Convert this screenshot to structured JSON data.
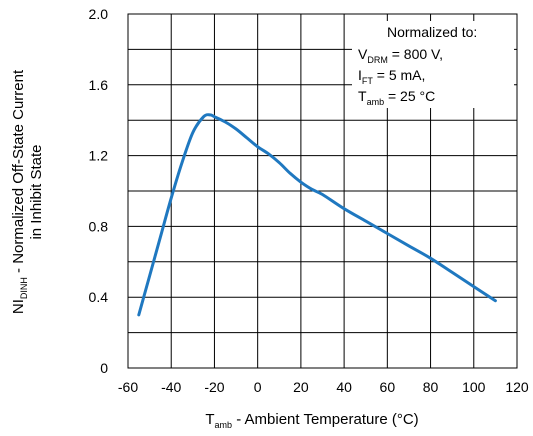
{
  "chart_data": {
    "type": "line",
    "xlabel": {
      "main": "T",
      "sub": "amb",
      "rest": " - Ambient Temperature (°C)"
    },
    "ylabel": {
      "line1_main": "NI",
      "line1_sub": "DINH",
      "line1_rest": " - Normalized Off-State Current",
      "line2": "in Inhibit State"
    },
    "xlim": [
      -60,
      120
    ],
    "ylim": [
      0,
      2.0
    ],
    "x_ticks": [
      -60,
      -40,
      -20,
      0,
      20,
      40,
      60,
      80,
      100,
      120
    ],
    "x_tick_labels": [
      "-60",
      "-40",
      "-20",
      "0",
      "20",
      "40",
      "60",
      "80",
      "100",
      "120"
    ],
    "y_ticks": [
      0,
      0.2,
      0.4,
      0.6,
      0.8,
      1.0,
      1.2,
      1.4,
      1.6,
      1.8,
      2.0
    ],
    "y_tick_labels": [
      "0",
      "",
      "0.4",
      "",
      "0.8",
      "",
      "1.2",
      "",
      "1.6",
      "",
      "2.0"
    ],
    "grid": true,
    "series": [
      {
        "color": "#1f78c0",
        "x": [
          -55,
          -50,
          -45,
          -40,
          -35,
          -30,
          -25,
          -22,
          -20,
          -15,
          -10,
          -5,
          0,
          5,
          10,
          15,
          20,
          25,
          30,
          40,
          50,
          60,
          70,
          80,
          90,
          100,
          110
        ],
        "y": [
          0.3,
          0.52,
          0.74,
          0.96,
          1.16,
          1.33,
          1.42,
          1.43,
          1.42,
          1.39,
          1.35,
          1.3,
          1.25,
          1.21,
          1.16,
          1.1,
          1.05,
          1.01,
          0.98,
          0.9,
          0.83,
          0.76,
          0.69,
          0.62,
          0.54,
          0.46,
          0.38
        ]
      }
    ],
    "annotation": {
      "title": "Normalized to:",
      "line1": {
        "main": "V",
        "sub": "DRM",
        "rest": " = 800 V,"
      },
      "line2": {
        "main": "I",
        "sub": "FT",
        "rest": " = 5 mA,"
      },
      "line3": {
        "main": "T",
        "sub": "amb",
        "rest": " = 25 °C"
      }
    }
  }
}
